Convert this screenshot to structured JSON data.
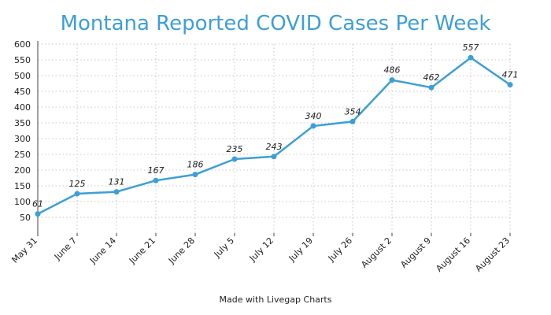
{
  "chart_data": {
    "type": "line",
    "title": "Montana Reported COVID Cases Per Week",
    "xlabel": "",
    "ylabel": "",
    "categories": [
      "May 31",
      "June 7",
      "June 14",
      "June 21",
      "June 28",
      "July 5",
      "July 12",
      "July 19",
      "July 26",
      "August 2",
      "August 9",
      "August 16",
      "August 23"
    ],
    "series": [
      {
        "values": [
          61,
          125,
          131,
          167,
          186,
          235,
          243,
          340,
          354,
          486,
          462,
          557,
          471
        ],
        "color": "#3d9fd6"
      }
    ],
    "yticks": [
      50,
      100,
      150,
      200,
      250,
      300,
      350,
      400,
      450,
      500,
      550,
      600
    ],
    "ylim": [
      0,
      600
    ],
    "grid": true,
    "data_labels": true,
    "footer": "Made with Livegap Charts"
  }
}
